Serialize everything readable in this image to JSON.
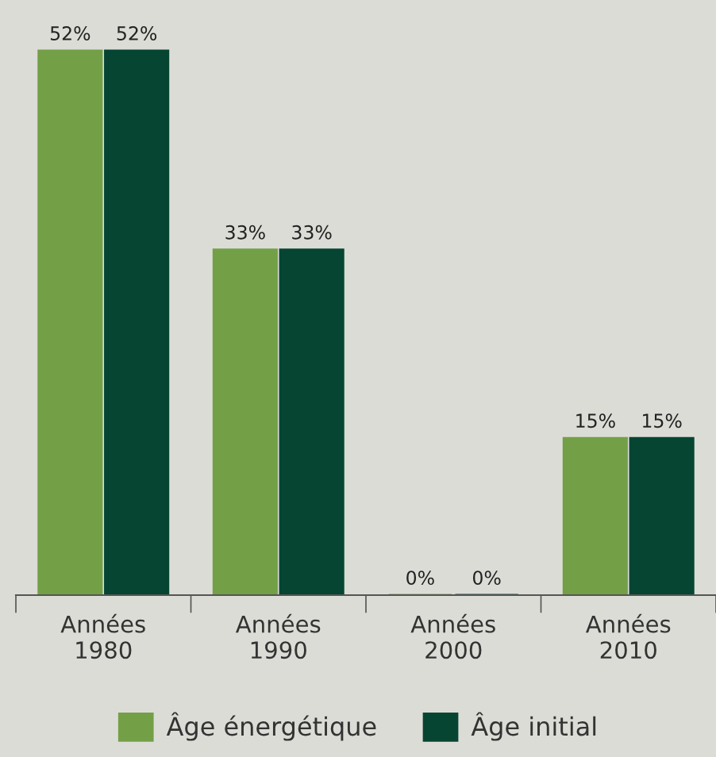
{
  "chart_data": {
    "type": "bar",
    "categories": [
      "Années\n1980",
      "Années\n1990",
      "Années\n2000",
      "Années\n2010"
    ],
    "series": [
      {
        "name": "Âge énergétique",
        "color": "#73a047",
        "values": [
          52,
          33,
          0,
          15
        ],
        "value_labels": [
          "52%",
          "33%",
          "0%",
          "15%"
        ]
      },
      {
        "name": "Âge initial",
        "color": "#064532",
        "values": [
          52,
          33,
          0,
          15
        ],
        "value_labels": [
          "52%",
          "33%",
          "0%",
          "15%"
        ]
      }
    ],
    "legend": "bottom",
    "grid": false
  }
}
